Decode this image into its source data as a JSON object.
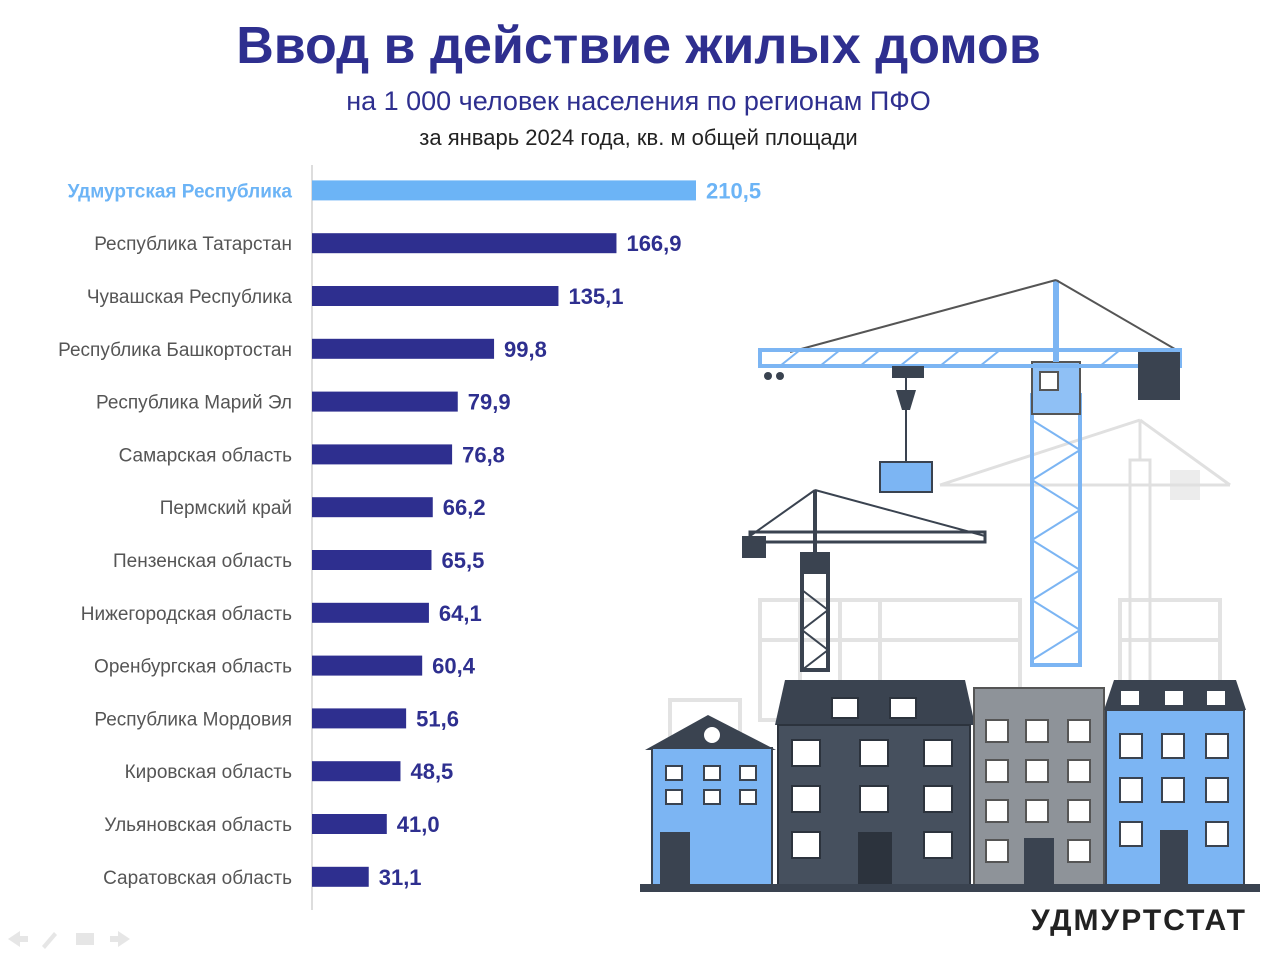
{
  "header": {
    "title": "Ввод в действие жилых домов",
    "subtitle": "на 1 000 человек населения по регионам ПФО",
    "subtitle2": "за январь 2024 года, кв. м общей площади"
  },
  "brand": "УДМУРТСТАТ",
  "colors": {
    "bar": "#2e2f8f",
    "highlight": "#6cb4f6",
    "label": "#555555",
    "value": "#2e2f8f"
  },
  "chart_data": {
    "type": "bar",
    "orientation": "horizontal",
    "categories": [
      "Удмуртская Республика",
      "Республика Татарстан",
      "Чувашская Республика",
      "Республика Башкортостан",
      "Республика Марий Эл",
      "Самарская область",
      "Пермский край",
      "Пензенская область",
      "Нижегородская область",
      "Оренбургская область",
      "Республика Мордовия",
      "Кировская область",
      "Ульяновская область",
      "Саратовская область"
    ],
    "values": [
      210.5,
      166.9,
      135.1,
      99.8,
      79.9,
      76.8,
      66.2,
      65.5,
      64.1,
      60.4,
      51.6,
      48.5,
      41.0,
      31.1
    ],
    "value_labels": [
      "210,5",
      "166,9",
      "135,1",
      "99,8",
      "79,9",
      "76,8",
      "66,2",
      "65,5",
      "64,1",
      "60,4",
      "51,6",
      "48,5",
      "41,0",
      "31,1"
    ],
    "highlight_index": 0,
    "title": "Ввод в действие жилых домов",
    "xlabel": "",
    "ylabel": "",
    "grid": false,
    "legend": "none"
  }
}
